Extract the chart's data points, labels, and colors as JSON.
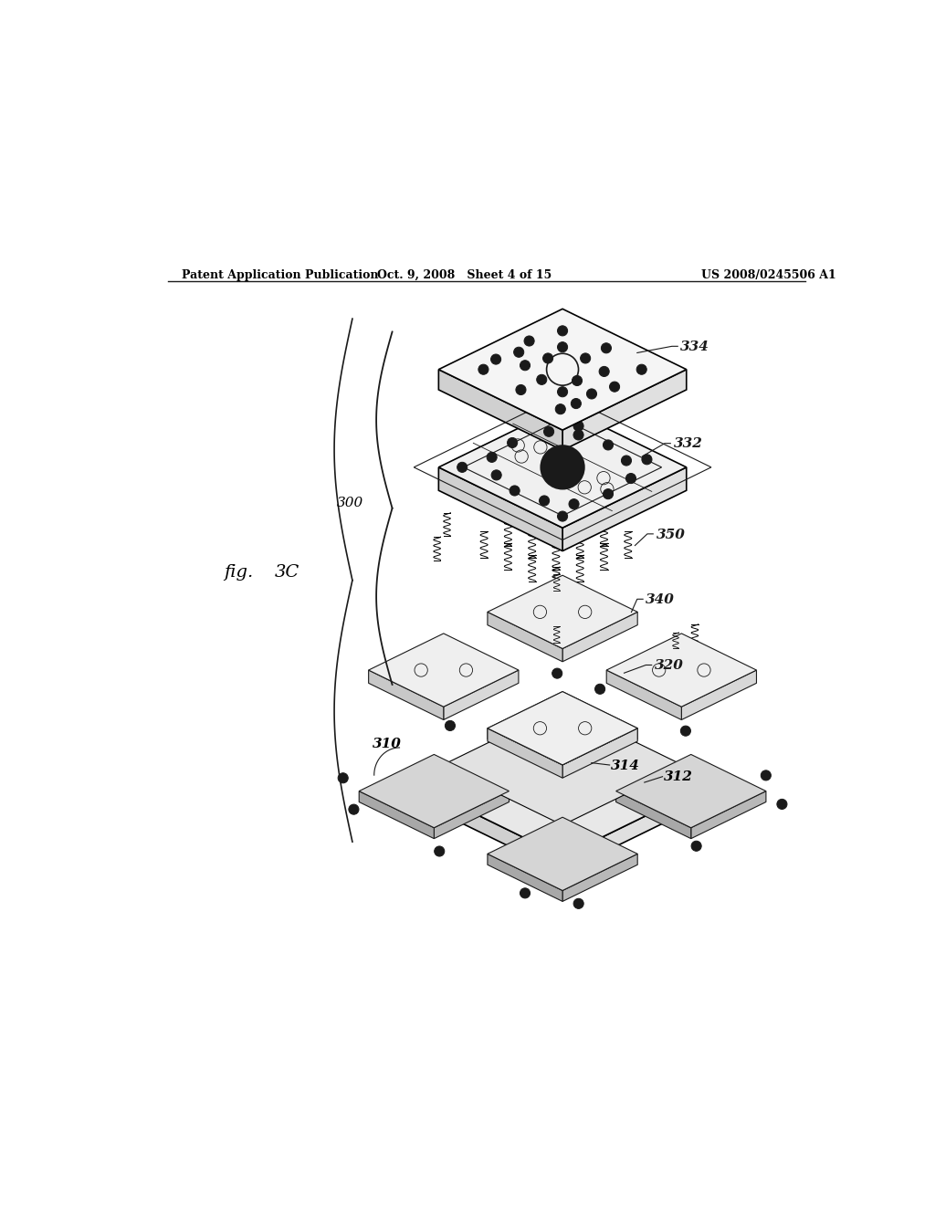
{
  "header_left": "Patent Application Publication",
  "header_mid": "Oct. 9, 2008   Sheet 4 of 15",
  "header_right": "US 2008/0245506 A1",
  "fig_label": "fig.  3C",
  "assembly_label": "300",
  "background": "#ffffff",
  "line_color": "#1a1a1a",
  "text_color": "#000000"
}
